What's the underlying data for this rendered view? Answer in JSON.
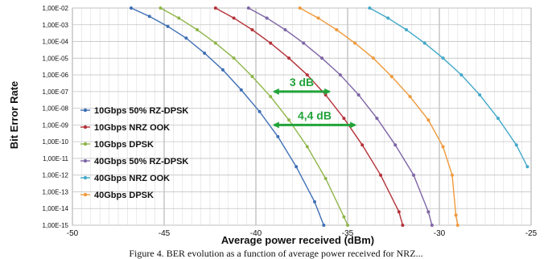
{
  "chart_data": {
    "type": "line",
    "title": "",
    "xlabel": "Average power received (dBm)",
    "ylabel": "Bit Error Rate",
    "xlim": [
      -50,
      -25
    ],
    "ylim_log10": [
      -15,
      -2
    ],
    "y_scale": "log",
    "grid": true,
    "legend_position": "left, inside plot",
    "x_ticks": [
      "-50",
      "-45",
      "-40",
      "-35",
      "-30",
      "-25"
    ],
    "y_ticks": [
      "1,00E-02",
      "1,00E-03",
      "1,00E-04",
      "1,00E-05",
      "1,00E-06",
      "1,00E-07",
      "1,00E-08",
      "1,00E-09",
      "1,00E-10",
      "1,00E-11",
      "1,00E-12",
      "1,00E-13",
      "1,00E-14",
      "1,00E-15"
    ],
    "series": [
      {
        "name": "10Gbps 50% RZ-DPSK",
        "color": "#3f6fb5",
        "points": [
          [
            -46.8,
            -2
          ],
          [
            -45.8,
            -2.5
          ],
          [
            -44.8,
            -3.1
          ],
          [
            -43.8,
            -3.8
          ],
          [
            -42.8,
            -4.7
          ],
          [
            -41.8,
            -5.7
          ],
          [
            -40.8,
            -6.9
          ],
          [
            -39.8,
            -8.2
          ],
          [
            -38.8,
            -9.7
          ],
          [
            -37.8,
            -11.5
          ],
          [
            -36.8,
            -13.6
          ],
          [
            -36.3,
            -15
          ]
        ]
      },
      {
        "name": "10Gbps NRZ OOK",
        "color": "#b5323a",
        "points": [
          [
            -42.2,
            -2
          ],
          [
            -41.2,
            -2.6
          ],
          [
            -40.2,
            -3.3
          ],
          [
            -39.2,
            -4.1
          ],
          [
            -38.2,
            -5
          ],
          [
            -37.2,
            -6
          ],
          [
            -36.2,
            -7.2
          ],
          [
            -35.2,
            -8.6
          ],
          [
            -34.2,
            -10.2
          ],
          [
            -33.2,
            -12
          ],
          [
            -32.2,
            -14.2
          ],
          [
            -32,
            -15
          ]
        ]
      },
      {
        "name": "10Gbps DPSK",
        "color": "#8fb64a",
        "points": [
          [
            -45.2,
            -2
          ],
          [
            -44.2,
            -2.6
          ],
          [
            -43.2,
            -3.3
          ],
          [
            -42.2,
            -4.1
          ],
          [
            -41.2,
            -5
          ],
          [
            -40.2,
            -6.1
          ],
          [
            -39.2,
            -7.3
          ],
          [
            -38.2,
            -8.7
          ],
          [
            -37.2,
            -10.3
          ],
          [
            -36.2,
            -12.2
          ],
          [
            -35.2,
            -14.5
          ],
          [
            -35,
            -15
          ]
        ]
      },
      {
        "name": "40Gbps 50% RZ-DPSK",
        "color": "#7f66a6",
        "points": [
          [
            -40.4,
            -2
          ],
          [
            -39.4,
            -2.6
          ],
          [
            -38.4,
            -3.3
          ],
          [
            -37.4,
            -4.1
          ],
          [
            -36.4,
            -5
          ],
          [
            -35.4,
            -6
          ],
          [
            -34.4,
            -7.2
          ],
          [
            -33.4,
            -8.6
          ],
          [
            -32.4,
            -10.2
          ],
          [
            -31.4,
            -12
          ],
          [
            -30.6,
            -14.2
          ],
          [
            -30.4,
            -15
          ]
        ]
      },
      {
        "name": "40Gbps NRZ OOK",
        "color": "#43a9c9",
        "points": [
          [
            -33.8,
            -2
          ],
          [
            -32.8,
            -2.6
          ],
          [
            -31.8,
            -3.3
          ],
          [
            -30.8,
            -4.1
          ],
          [
            -29.8,
            -5
          ],
          [
            -28.8,
            -6
          ],
          [
            -27.8,
            -7.2
          ],
          [
            -26.8,
            -8.6
          ],
          [
            -25.8,
            -10.2
          ],
          [
            -25.2,
            -11.5
          ]
        ]
      },
      {
        "name": "40Gbps DPSK",
        "color": "#ef9a3c",
        "points": [
          [
            -37.6,
            -2
          ],
          [
            -36.6,
            -2.6
          ],
          [
            -35.6,
            -3.3
          ],
          [
            -34.6,
            -4.1
          ],
          [
            -33.6,
            -5
          ],
          [
            -32.6,
            -6.1
          ],
          [
            -31.6,
            -7.3
          ],
          [
            -30.6,
            -8.7
          ],
          [
            -29.8,
            -10.3
          ],
          [
            -29.3,
            -12
          ],
          [
            -29.1,
            -14.4
          ],
          [
            -29,
            -15
          ]
        ]
      }
    ],
    "annotations": [
      {
        "text": "3 dB",
        "x_from": -39,
        "x_to": -36,
        "y_log10": -7,
        "color": "#22a33a"
      },
      {
        "text": "4,4 dB",
        "x_from": -39,
        "x_to": -34.6,
        "y_log10": -9,
        "color": "#22a33a"
      }
    ]
  },
  "caption": "Figure 4. BER evolution as a function of average power received for NRZ..."
}
